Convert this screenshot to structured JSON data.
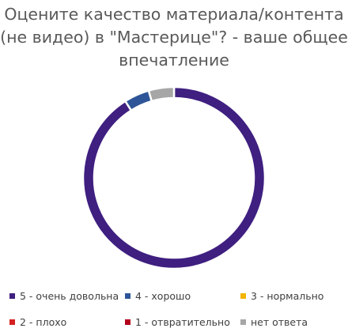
{
  "chart_data": {
    "type": "pie",
    "title_lines": [
      "Оцените качество материала/контента",
      "(не видео) в \"Мастерице\"? - ваше общее",
      "впечатление"
    ],
    "donut": true,
    "legend_position": "bottom",
    "categories": [
      "5 - очень довольна",
      "4 - хорошо",
      "3 - нормально",
      "2 - плохо",
      "1 - отвратительно",
      "нет ответа"
    ],
    "values": [
      91,
      4.5,
      0,
      0,
      0,
      4.5
    ],
    "colors": [
      "#3f1f80",
      "#2e5597",
      "#f2b400",
      "#d42020",
      "#b3001b",
      "#a6a6a6"
    ]
  }
}
